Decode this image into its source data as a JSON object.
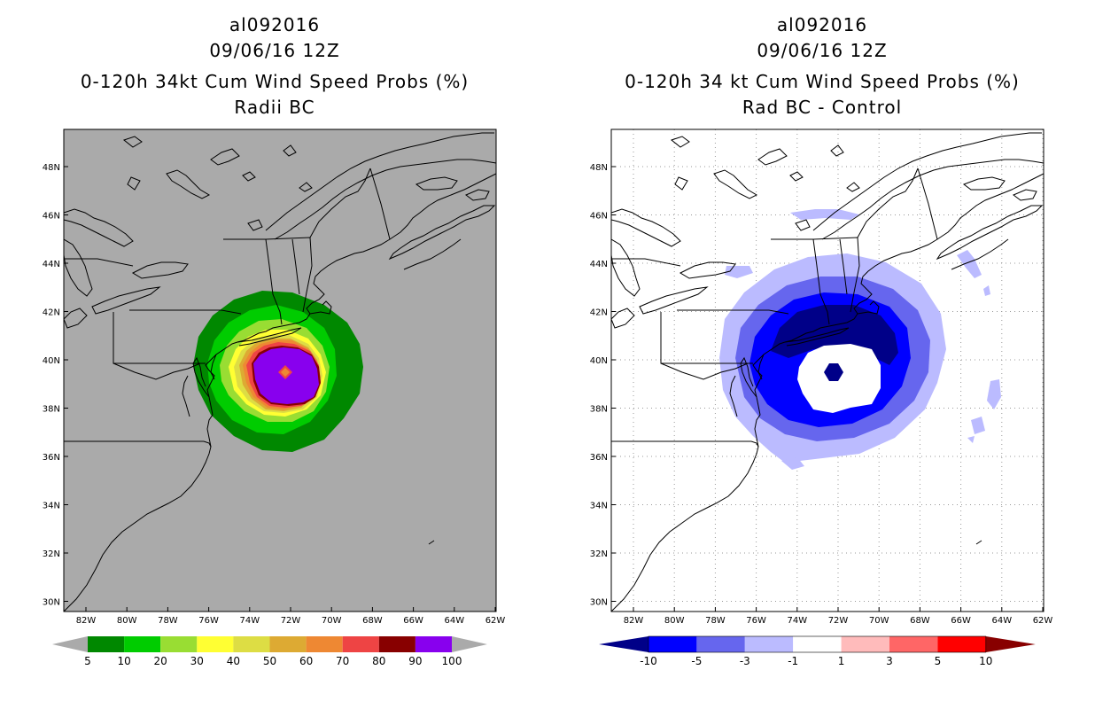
{
  "left_panel": {
    "title_lines": [
      "al092016",
      "09/06/16 12Z",
      "0-120h 34kt Cum Wind Speed Probs (%)",
      "Radii BC"
    ],
    "background": "#aaaaaa",
    "colorbar": {
      "labels": [
        "5",
        "10",
        "20",
        "30",
        "40",
        "50",
        "60",
        "70",
        "80",
        "90",
        "100"
      ],
      "colors": [
        "#008800",
        "#00cc00",
        "#99dd33",
        "#ffff33",
        "#dddd44",
        "#ddaa33",
        "#ee8833",
        "#ee4444",
        "#880000",
        "#8800ee"
      ],
      "end_arrow_color": "#aaaaaa"
    }
  },
  "right_panel": {
    "title_lines": [
      "al092016",
      "09/06/16 12Z",
      "0-120h 34 kt Cum Wind Speed Probs (%)",
      "Rad BC - Control"
    ],
    "background": "#ffffff",
    "colorbar": {
      "labels": [
        "-10",
        "-5",
        "-3",
        "-1",
        "1",
        "3",
        "5",
        "10"
      ],
      "colors": [
        "#0000ff",
        "#6666ee",
        "#bbbbff",
        "#ffffff",
        "#ffbbbb",
        "#ff6666",
        "#ff0000"
      ],
      "low_arrow_color": "#000088",
      "high_arrow_color": "#880000"
    }
  },
  "axes": {
    "lat_labels": [
      "48N",
      "46N",
      "44N",
      "42N",
      "40N",
      "38N",
      "36N",
      "34N",
      "32N",
      "30N"
    ],
    "lon_labels": [
      "82W",
      "80W",
      "78W",
      "76W",
      "74W",
      "72W",
      "70W",
      "68W",
      "66W",
      "64W",
      "62W"
    ]
  },
  "colors": {
    "coast": "#000000",
    "grid_dots": "#999999",
    "diff_dark": "#000088",
    "diff_blue": "#0000ff",
    "diff_mid": "#6666ee",
    "diff_light": "#bbbbff"
  }
}
